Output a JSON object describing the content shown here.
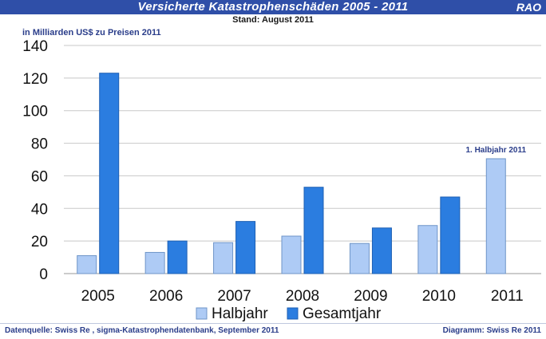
{
  "header": {
    "title": "Versicherte Katastrophenschäden 2005 - 2011",
    "subtitle": "Stand: August 2011",
    "logo": "RAO"
  },
  "footer": {
    "source": "Datenquelle: Swiss Re , sigma-Katastrophendatenbank, September 2011",
    "credit": "Diagramm: Swiss Re 2011"
  },
  "colors": {
    "header_bg": "#2f4fa8",
    "halbjahr": "#aecbf5",
    "gesamtjahr": "#2b7de0",
    "footer_text": "#2a3d8a"
  },
  "chart_data": {
    "type": "bar",
    "unit_label": "in Milliarden US$ zu Preisen 2011",
    "categories": [
      "2005",
      "2006",
      "2007",
      "2008",
      "2009",
      "2010",
      "2011"
    ],
    "series": [
      {
        "name": "Halbjahr",
        "values": [
          11,
          13,
          19,
          23,
          18.5,
          29.5,
          70.5
        ]
      },
      {
        "name": "Gesamtjahr",
        "values": [
          123,
          20,
          32,
          53,
          28,
          47,
          null
        ]
      }
    ],
    "y_ticks": [
      0,
      20,
      40,
      60,
      80,
      100,
      120,
      140
    ],
    "ylim": [
      0,
      140
    ],
    "grid": true,
    "legend": "bottom",
    "annotation": "1. Halbjahr 2011"
  }
}
